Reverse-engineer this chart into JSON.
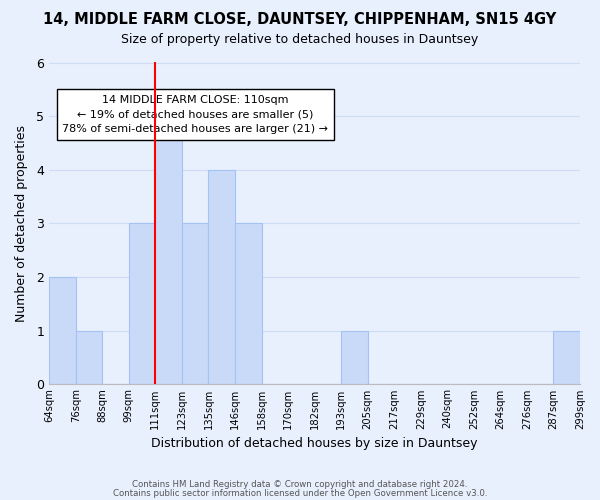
{
  "title1": "14, MIDDLE FARM CLOSE, DAUNTSEY, CHIPPENHAM, SN15 4GY",
  "title2": "Size of property relative to detached houses in Dauntsey",
  "xlabel": "Distribution of detached houses by size in Dauntsey",
  "ylabel": "Number of detached properties",
  "bin_edges": [
    "64sqm",
    "76sqm",
    "88sqm",
    "99sqm",
    "111sqm",
    "123sqm",
    "135sqm",
    "146sqm",
    "158sqm",
    "170sqm",
    "182sqm",
    "193sqm",
    "205sqm",
    "217sqm",
    "229sqm",
    "240sqm",
    "252sqm",
    "264sqm",
    "276sqm",
    "287sqm",
    "299sqm"
  ],
  "bar_heights": [
    2,
    1,
    0,
    3,
    5,
    3,
    4,
    3,
    0,
    0,
    0,
    1,
    0,
    0,
    0,
    0,
    0,
    0,
    0,
    1
  ],
  "bar_color": "#c9daf8",
  "bar_edge_color": "#a4c2f4",
  "red_line_bin_index": 4,
  "ylim": [
    0,
    6
  ],
  "yticks": [
    0,
    1,
    2,
    3,
    4,
    5,
    6
  ],
  "annotation_title": "14 MIDDLE FARM CLOSE: 110sqm",
  "annotation_line1": "← 19% of detached houses are smaller (5)",
  "annotation_line2": "78% of semi-detached houses are larger (21) →",
  "annotation_box_color": "#ffffff",
  "annotation_box_edge": "#000000",
  "footer1": "Contains HM Land Registry data © Crown copyright and database right 2024.",
  "footer2": "Contains public sector information licensed under the Open Government Licence v3.0.",
  "grid_color": "#ccddf5",
  "background_color": "#e8f0fe"
}
